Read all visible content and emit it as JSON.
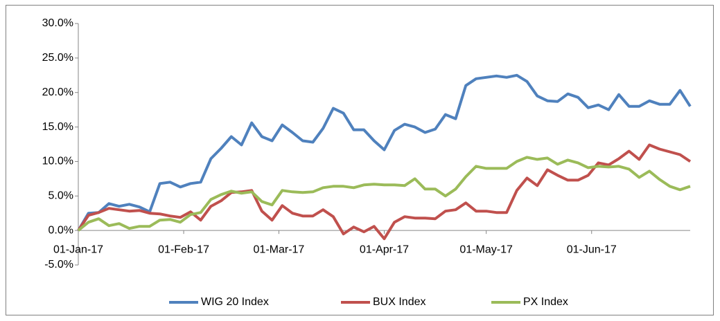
{
  "chart_data": {
    "type": "line",
    "x": [
      "2017-01-01",
      "2017-01-04",
      "2017-01-07",
      "2017-01-10",
      "2017-01-13",
      "2017-01-16",
      "2017-01-19",
      "2017-01-22",
      "2017-01-25",
      "2017-01-28",
      "2017-01-31",
      "2017-02-03",
      "2017-02-06",
      "2017-02-09",
      "2017-02-12",
      "2017-02-15",
      "2017-02-18",
      "2017-02-21",
      "2017-02-24",
      "2017-02-27",
      "2017-03-02",
      "2017-03-05",
      "2017-03-08",
      "2017-03-11",
      "2017-03-14",
      "2017-03-17",
      "2017-03-20",
      "2017-03-23",
      "2017-03-26",
      "2017-03-29",
      "2017-04-01",
      "2017-04-04",
      "2017-04-07",
      "2017-04-10",
      "2017-04-13",
      "2017-04-16",
      "2017-04-19",
      "2017-04-22",
      "2017-04-25",
      "2017-04-28",
      "2017-05-01",
      "2017-05-04",
      "2017-05-07",
      "2017-05-10",
      "2017-05-13",
      "2017-05-16",
      "2017-05-19",
      "2017-05-22",
      "2017-05-25",
      "2017-05-28",
      "2017-05-31",
      "2017-06-03",
      "2017-06-06",
      "2017-06-09",
      "2017-06-12",
      "2017-06-15",
      "2017-06-18",
      "2017-06-21",
      "2017-06-24",
      "2017-06-27",
      "2017-06-30"
    ],
    "series": [
      {
        "name": "WIG 20 Index",
        "color": "#4f81bd",
        "values": [
          0,
          2.5,
          2.6,
          3.9,
          3.5,
          3.8,
          3.4,
          2.7,
          6.8,
          7.0,
          6.3,
          6.8,
          7.0,
          10.4,
          11.9,
          13.6,
          12.4,
          15.6,
          13.6,
          13.0,
          15.3,
          14.2,
          13.0,
          12.8,
          14.8,
          17.7,
          17.0,
          14.6,
          14.6,
          13.0,
          11.7,
          14.5,
          15.4,
          15.0,
          14.2,
          14.7,
          16.8,
          16.2,
          21.0,
          22.0,
          22.2,
          22.4,
          22.2,
          22.5,
          21.6,
          19.5,
          18.8,
          18.7,
          19.8,
          19.3,
          17.8,
          18.2,
          17.5,
          19.7,
          18.0,
          18.0,
          18.8,
          18.3,
          18.3,
          20.3,
          18.0
        ]
      },
      {
        "name": "BUX Index",
        "color": "#c0504d",
        "values": [
          0,
          2.2,
          2.6,
          3.2,
          3.0,
          2.8,
          2.9,
          2.5,
          2.4,
          2.1,
          1.9,
          2.7,
          1.5,
          3.5,
          4.3,
          5.5,
          5.6,
          5.8,
          2.8,
          1.5,
          3.6,
          2.5,
          2.1,
          2.1,
          3.0,
          2.0,
          -0.5,
          0.5,
          -0.2,
          0.6,
          -1.2,
          1.2,
          2.0,
          1.8,
          1.8,
          1.7,
          2.8,
          3.0,
          4.0,
          2.8,
          2.8,
          2.6,
          2.6,
          5.8,
          7.6,
          6.5,
          8.8,
          8.0,
          7.3,
          7.3,
          8.0,
          9.8,
          9.5,
          10.4,
          11.5,
          10.3,
          12.4,
          11.8,
          11.4,
          11.0,
          10.0
        ]
      },
      {
        "name": "PX Index",
        "color": "#9bbb59",
        "values": [
          0,
          1.2,
          1.7,
          0.7,
          1.0,
          0.3,
          0.6,
          0.6,
          1.5,
          1.6,
          1.2,
          2.3,
          2.6,
          4.5,
          5.2,
          5.7,
          5.4,
          5.6,
          4.2,
          3.7,
          5.8,
          5.6,
          5.5,
          5.6,
          6.2,
          6.4,
          6.4,
          6.2,
          6.6,
          6.7,
          6.6,
          6.6,
          6.5,
          7.5,
          6.0,
          6.0,
          5.0,
          6.0,
          7.8,
          9.3,
          9.0,
          9.0,
          9.0,
          10.0,
          10.6,
          10.3,
          10.5,
          9.6,
          10.2,
          9.8,
          9.1,
          9.3,
          9.2,
          9.3,
          8.9,
          7.7,
          8.6,
          7.4,
          6.4,
          5.9,
          6.4
        ]
      }
    ],
    "xlim": [
      "2017-01-01",
      "2017-06-30"
    ],
    "xticks": [
      {
        "value": "2017-01-01",
        "label": "01-Jan-17"
      },
      {
        "value": "2017-02-01",
        "label": "01-Feb-17"
      },
      {
        "value": "2017-03-01",
        "label": "01-Mar-17"
      },
      {
        "value": "2017-04-01",
        "label": "01-Apr-17"
      },
      {
        "value": "2017-05-01",
        "label": "01-May-17"
      },
      {
        "value": "2017-06-01",
        "label": "01-Jun-17"
      }
    ],
    "ylim": [
      -5,
      30
    ],
    "yticks": [
      {
        "value": -5,
        "label": "-5.0%"
      },
      {
        "value": 0,
        "label": "0.0%"
      },
      {
        "value": 5,
        "label": "5.0%"
      },
      {
        "value": 10,
        "label": "10.0%"
      },
      {
        "value": 15,
        "label": "15.0%"
      },
      {
        "value": 20,
        "label": "20.0%"
      },
      {
        "value": 25,
        "label": "25.0%"
      },
      {
        "value": 30,
        "label": "30.0%"
      }
    ],
    "grid": false,
    "legend": "bottom"
  }
}
